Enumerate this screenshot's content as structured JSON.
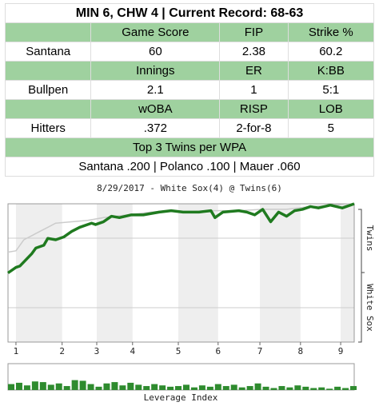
{
  "table": {
    "title": "MIN 6, CHW 4 | Current Record: 68-63",
    "sections": [
      {
        "headers": [
          "Game Score",
          "FIP",
          "Strike %"
        ],
        "label": "Santana",
        "values": [
          "60",
          "2.38",
          "60.2"
        ]
      },
      {
        "headers": [
          "Innings",
          "ER",
          "K:BB"
        ],
        "label": "Bullpen",
        "values": [
          "2.1",
          "1",
          "5:1"
        ]
      },
      {
        "headers": [
          "wOBA",
          "RISP",
          "LOB"
        ],
        "label": "Hitters",
        "values": [
          ".372",
          "2-for-8",
          "5"
        ]
      }
    ],
    "footer_title": "Top 3 Twins per WPA",
    "footer": "Santana .200 | Polanco .100 | Mauer .060"
  },
  "chart_data": [
    {
      "type": "line",
      "title": "8/29/2017 - White Sox(4) @ Twins(6)",
      "top_label": "Twins",
      "bottom_label": "White Sox",
      "xlim": [
        0,
        87
      ],
      "ylim": [
        0,
        100
      ],
      "xticks": [
        {
          "value": 2,
          "label": "1"
        },
        {
          "value": 13.6,
          "label": "2"
        },
        {
          "value": 22.3,
          "label": "3"
        },
        {
          "value": 31.3,
          "label": "4"
        },
        {
          "value": 42.8,
          "label": "5"
        },
        {
          "value": 52.8,
          "label": "6"
        },
        {
          "value": 63.3,
          "label": "7"
        },
        {
          "value": 73.5,
          "label": "8"
        },
        {
          "value": 83.6,
          "label": "9"
        }
      ],
      "series": [
        {
          "color": "#cccccc",
          "x": [
            0,
            2,
            4,
            6,
            8,
            10,
            12,
            16,
            20,
            24,
            30,
            36,
            40,
            44,
            50,
            54,
            58,
            64,
            70,
            76,
            87
          ],
          "values": [
            65,
            66,
            74,
            77,
            80,
            83,
            86,
            87,
            88,
            90,
            92,
            94,
            95,
            94,
            95,
            95,
            95,
            96,
            96,
            98,
            100
          ]
        },
        {
          "color": "#1f7a1f",
          "x": [
            0,
            2,
            3,
            6,
            7,
            9,
            10,
            12,
            14,
            16,
            18,
            21,
            22,
            24,
            26,
            28,
            31,
            34,
            38,
            41,
            44,
            48,
            51,
            52,
            54,
            58,
            60,
            62,
            64,
            66,
            68,
            70,
            72,
            74,
            76,
            78,
            81,
            84,
            86,
            87
          ],
          "values": [
            50,
            54,
            55,
            64,
            68,
            70,
            75,
            74,
            76,
            80,
            83,
            86,
            85,
            87,
            91,
            90,
            92,
            92,
            94,
            95,
            94,
            94,
            95,
            90,
            94,
            95,
            94,
            92,
            96,
            87,
            94,
            91,
            95,
            96,
            98,
            97,
            99,
            97,
            99,
            100
          ]
        }
      ]
    },
    {
      "type": "bar",
      "xlabel": "Leverage Index",
      "xlim": [
        0,
        87
      ],
      "ylim": [
        0,
        4
      ],
      "color": "#2e8b2e",
      "x": [
        0,
        2,
        4,
        6,
        8,
        10,
        12,
        14,
        16,
        18,
        20,
        22,
        24,
        26,
        28,
        30,
        32,
        34,
        36,
        38,
        40,
        42,
        44,
        46,
        48,
        50,
        52,
        54,
        56,
        58,
        60,
        62,
        64,
        66,
        68,
        70,
        72,
        74,
        76,
        78,
        80,
        82,
        84,
        86
      ],
      "values": [
        0.9,
        1.1,
        0.7,
        1.3,
        1.2,
        0.8,
        1.0,
        0.6,
        1.5,
        1.4,
        0.9,
        0.5,
        1.0,
        1.2,
        0.7,
        1.1,
        0.8,
        0.6,
        0.9,
        0.7,
        0.5,
        0.6,
        0.8,
        0.4,
        0.7,
        0.5,
        0.9,
        0.6,
        0.8,
        0.4,
        0.6,
        1.0,
        0.5,
        0.3,
        0.6,
        0.4,
        0.7,
        0.5,
        0.3,
        0.4,
        0.2,
        0.5,
        0.3,
        0.6
      ]
    }
  ]
}
